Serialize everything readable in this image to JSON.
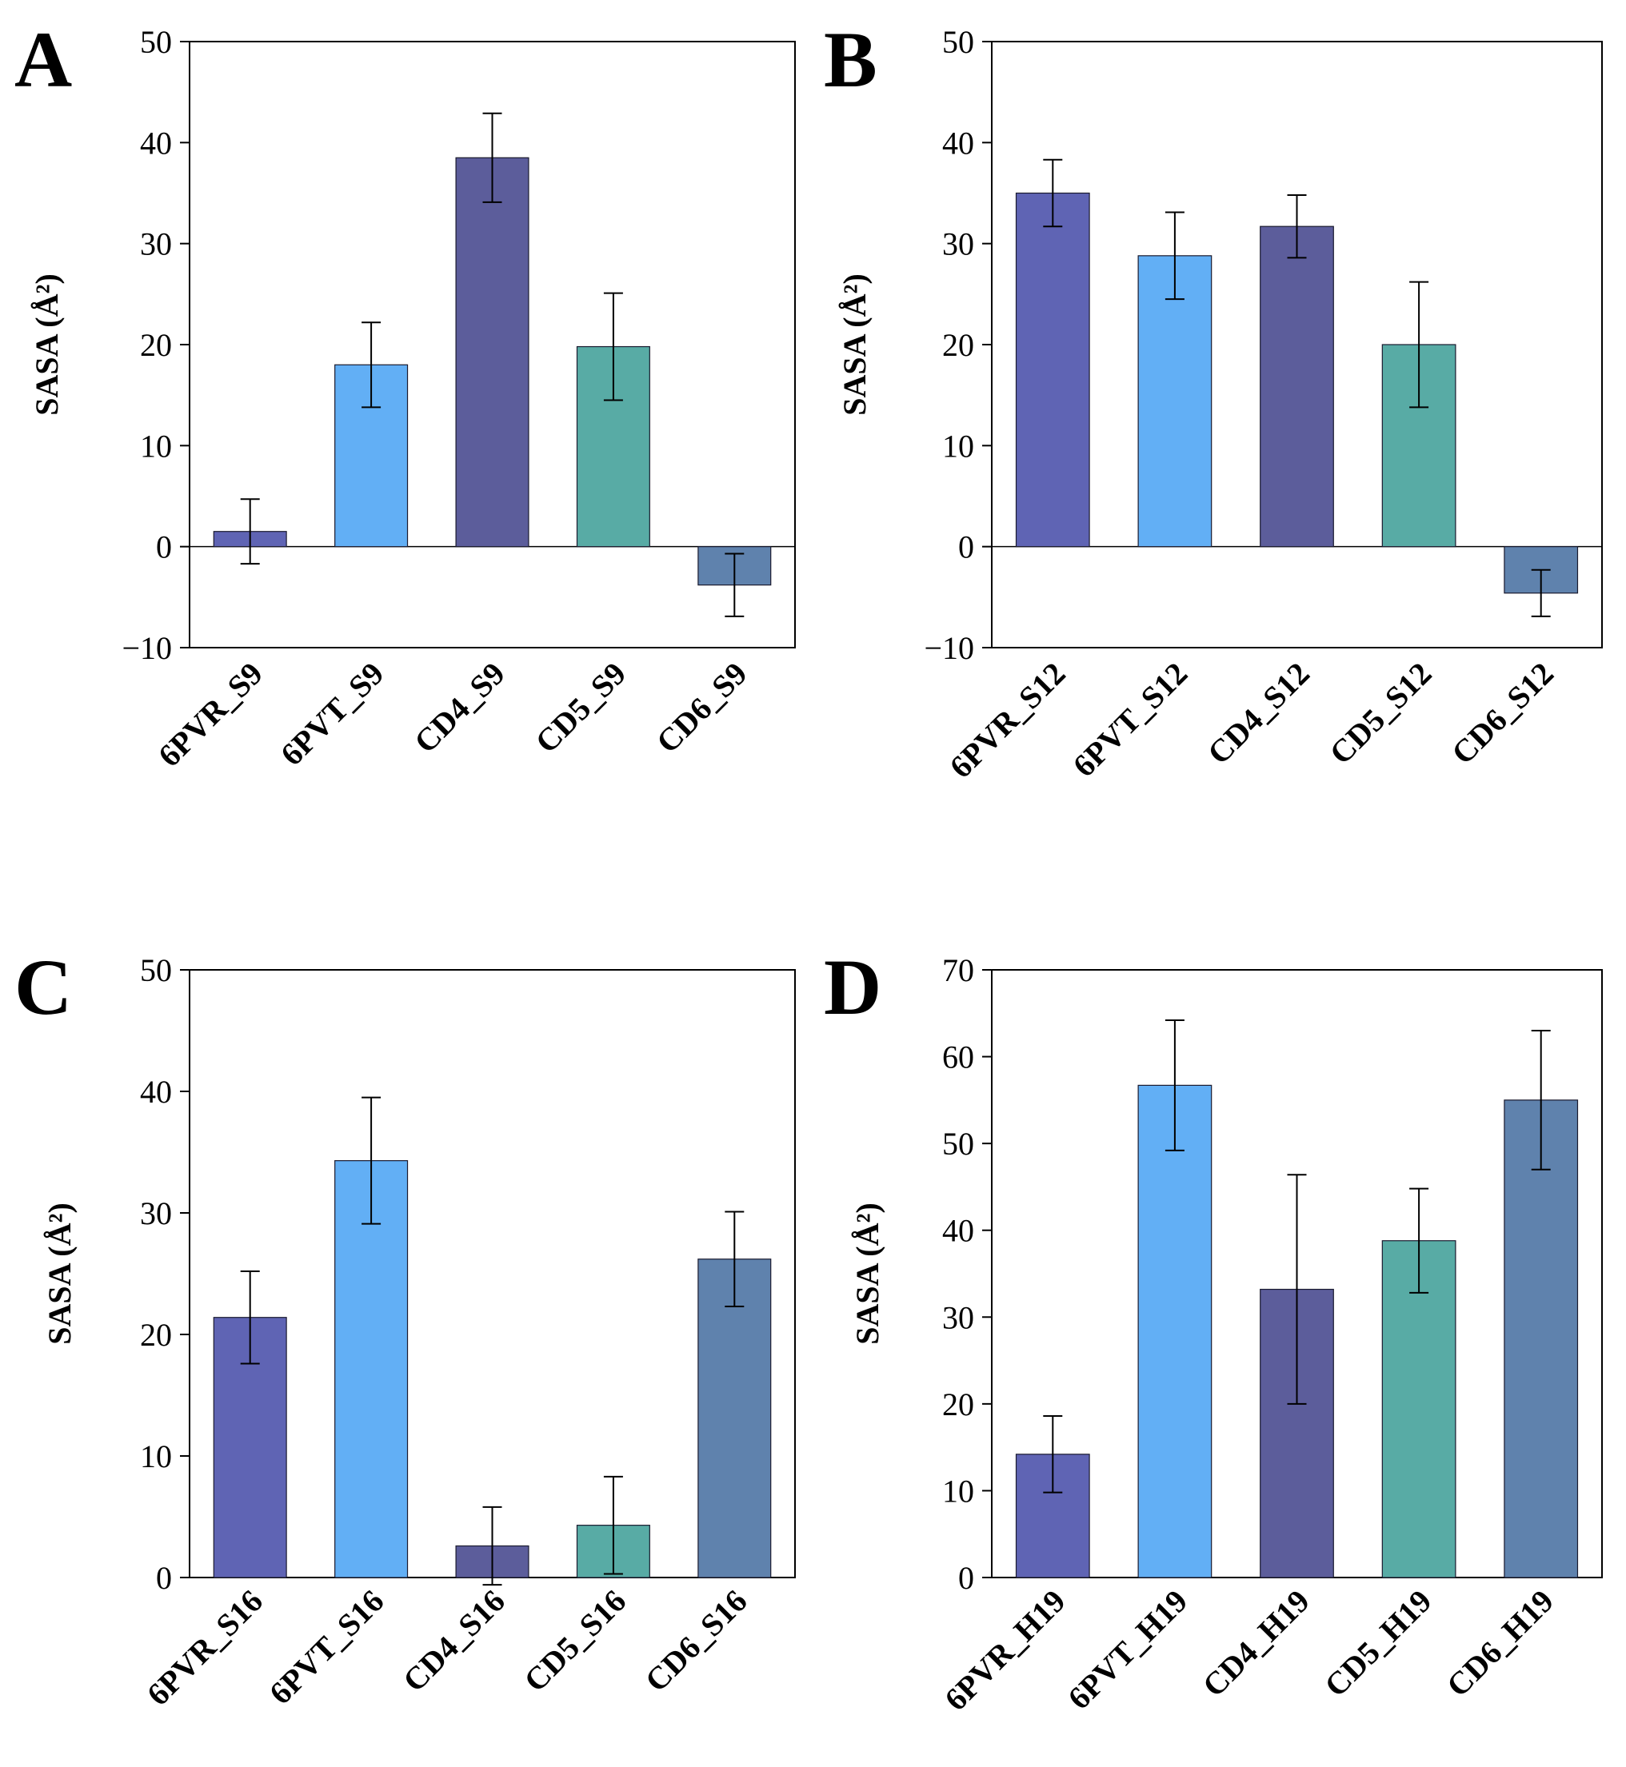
{
  "chart_data": [
    {
      "panel": "A",
      "type": "bar",
      "ylabel": "SASA (Å²)",
      "ylim": [
        -10,
        50
      ],
      "yticks": [
        -10,
        0,
        10,
        20,
        30,
        40,
        50
      ],
      "ytick_labels": [
        "−10",
        "0",
        "10",
        "20",
        "30",
        "40",
        "50"
      ],
      "categories": [
        "6PVR_S9",
        "6PVT_S9",
        "CD4_S9",
        "CD5_S9",
        "CD6_S9"
      ],
      "values": [
        1.5,
        18.0,
        38.5,
        19.8,
        -3.8
      ],
      "errors": [
        3.2,
        4.2,
        4.4,
        5.3,
        3.1
      ],
      "colors": [
        "#5f64b4",
        "#62aff5",
        "#5c5d9b",
        "#58aba5",
        "#5f82ad"
      ]
    },
    {
      "panel": "B",
      "type": "bar",
      "ylabel": "SASA (Å²)",
      "ylim": [
        -10,
        50
      ],
      "yticks": [
        -10,
        0,
        10,
        20,
        30,
        40,
        50
      ],
      "ytick_labels": [
        "−10",
        "0",
        "10",
        "20",
        "30",
        "40",
        "50"
      ],
      "categories": [
        "6PVR_S12",
        "6PVT_S12",
        "CD4_S12",
        "CD5_S12",
        "CD6_S12"
      ],
      "values": [
        35.0,
        28.8,
        31.7,
        20.0,
        -4.6
      ],
      "errors": [
        3.3,
        4.3,
        3.1,
        6.2,
        2.3
      ],
      "colors": [
        "#5f64b4",
        "#62aff5",
        "#5c5d9b",
        "#58aba5",
        "#5f82ad"
      ]
    },
    {
      "panel": "C",
      "type": "bar",
      "ylabel": "SASA (Å²)",
      "ylim": [
        0,
        50
      ],
      "yticks": [
        0,
        10,
        20,
        30,
        40,
        50
      ],
      "ytick_labels": [
        "0",
        "10",
        "20",
        "30",
        "40",
        "50"
      ],
      "categories": [
        "6PVR_S16",
        "6PVT_S16",
        "CD4_S16",
        "CD5_S16",
        "CD6_S16"
      ],
      "values": [
        21.4,
        34.3,
        2.6,
        4.3,
        26.2
      ],
      "errors": [
        3.8,
        5.2,
        3.2,
        4.0,
        3.9
      ],
      "colors": [
        "#5f64b4",
        "#62aff5",
        "#5c5d9b",
        "#58aba5",
        "#5f82ad"
      ]
    },
    {
      "panel": "D",
      "type": "bar",
      "ylabel": "SASA (Å²)",
      "ylim": [
        0,
        70
      ],
      "yticks": [
        0,
        10,
        20,
        30,
        40,
        50,
        60,
        70
      ],
      "ytick_labels": [
        "0",
        "10",
        "20",
        "30",
        "40",
        "50",
        "60",
        "70"
      ],
      "categories": [
        "6PVR_H19",
        "6PVT_H19",
        "CD4_H19",
        "CD5_H19",
        "CD6_H19"
      ],
      "values": [
        14.2,
        56.7,
        33.2,
        38.8,
        55.0
      ],
      "errors": [
        4.4,
        7.5,
        13.2,
        6.0,
        8.0
      ],
      "colors": [
        "#5f64b4",
        "#62aff5",
        "#5c5d9b",
        "#58aba5",
        "#5f82ad"
      ]
    }
  ]
}
